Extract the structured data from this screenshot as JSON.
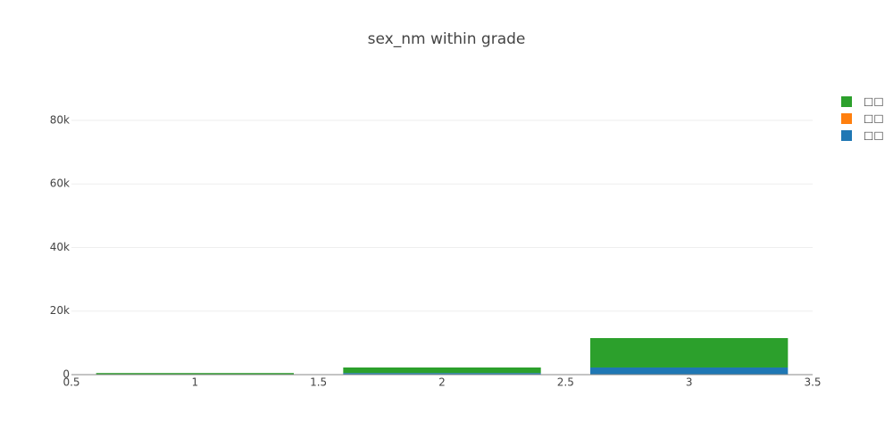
{
  "chart_data": {
    "type": "bar",
    "title": "sex_nm within grade",
    "barmode": "stack",
    "x": [
      1,
      2,
      3
    ],
    "series": [
      {
        "name": "□□",
        "color": "#1f77b4",
        "values": [
          100,
          500,
          2250
        ]
      },
      {
        "name": "□□",
        "color": "#ff7f0e",
        "values": [
          0,
          0,
          0
        ]
      },
      {
        "name": "□□",
        "color": "#2ca02c",
        "values": [
          400,
          1750,
          9250
        ]
      }
    ],
    "xlim": [
      0.5,
      3.5
    ],
    "xticks": [
      0.5,
      1,
      1.5,
      2,
      2.5,
      3,
      3.5
    ],
    "ylim": [
      0,
      89800
    ],
    "yticks": [
      0,
      {
        "value": 20000,
        "label": "20k"
      },
      {
        "value": 40000,
        "label": "40k"
      },
      {
        "value": 60000,
        "label": "60k"
      },
      {
        "value": 80000,
        "label": "80k"
      }
    ],
    "grid": true,
    "bar_width": 0.8
  }
}
